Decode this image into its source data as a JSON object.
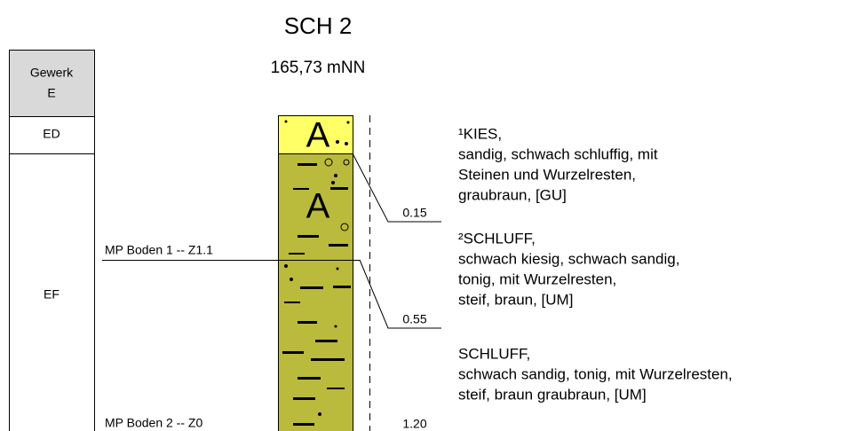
{
  "header": {
    "title": "SCH 2",
    "elevation": "165,73 mNN"
  },
  "sidebar": {
    "header": [
      "Gewerk",
      "E"
    ],
    "sections": [
      "ED",
      "EF"
    ]
  },
  "column": {
    "symbols": [
      "A",
      "A"
    ]
  },
  "samples": [
    "MP Boden 1 -- Z1.1",
    "MP Boden 2 -- Z0"
  ],
  "depths": [
    "0.15",
    "0.55",
    "1.20"
  ],
  "layers": [
    {
      "lines": [
        "¹KIES,",
        "sandig, schwach schluffig, mit",
        "Steinen und Wurzelresten,",
        "graubraun, [GU]"
      ]
    },
    {
      "lines": [
        "²SCHLUFF,",
        "schwach kiesig, schwach sandig,",
        "tonig, mit Wurzelresten,",
        "steif, braun, [UM]"
      ]
    },
    {
      "lines": [
        "SCHLUFF,",
        "schwach sandig, tonig, mit Wurzelresten,",
        "steif, braun graubraun, [UM]"
      ]
    }
  ]
}
